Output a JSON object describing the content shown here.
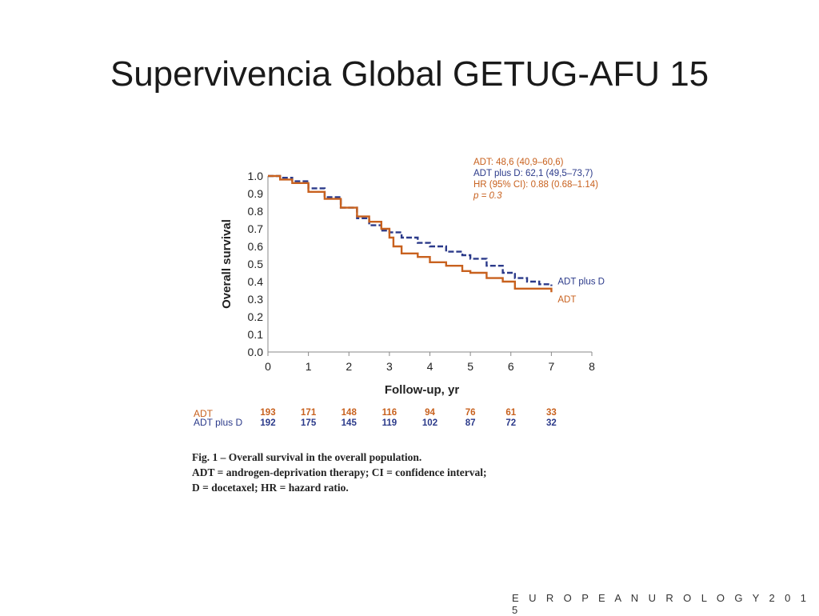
{
  "slide": {
    "title": "Supervivencia Global GETUG-AFU 15",
    "footer": "E U R O P E A N U R O L O G Y  2 0 1 5"
  },
  "caption": {
    "title": "Fig. 1 – Overall survival in the overall population.",
    "lines": [
      "ADT = androgen-deprivation therapy; CI = confidence interval;",
      "D = docetaxel; HR = hazard ratio."
    ]
  },
  "chart_data": {
    "type": "line",
    "xlabel": "Follow-up, yr",
    "ylabel": "Overall survival",
    "xlim": [
      0,
      8
    ],
    "ylim": [
      0,
      1
    ],
    "xticks": [
      "0",
      "1",
      "2",
      "3",
      "4",
      "5",
      "6",
      "7",
      "8"
    ],
    "yticks": [
      "0.0",
      "0.1",
      "0.2",
      "0.3",
      "0.4",
      "0.5",
      "0.6",
      "0.7",
      "0.8",
      "0.9",
      "1.0"
    ],
    "annotations": [
      {
        "text": "ADT: 48,6 (40,9–60,6)",
        "color": "#c8611e",
        "italic": false
      },
      {
        "text": "ADT plus D: 62,1 (49,5–73,7)",
        "color": "#2b3a8a",
        "italic": false
      },
      {
        "text": "HR (95% CI): 0.88 (0.68–1.14)",
        "color": "#c8611e",
        "italic": false
      },
      {
        "text": "p = 0.3",
        "color": "#c8611e",
        "italic": true
      }
    ],
    "series": [
      {
        "name": "ADT plus D",
        "color": "#2b3a8a",
        "dashed": true,
        "x": [
          0,
          0.3,
          0.6,
          1.0,
          1.4,
          1.8,
          2.2,
          2.5,
          2.8,
          3.0,
          3.3,
          3.7,
          4.0,
          4.4,
          4.8,
          5.0,
          5.4,
          5.8,
          6.1,
          6.4,
          6.7,
          7.0
        ],
        "y": [
          1.0,
          0.99,
          0.97,
          0.93,
          0.88,
          0.82,
          0.76,
          0.72,
          0.69,
          0.68,
          0.65,
          0.62,
          0.6,
          0.57,
          0.55,
          0.53,
          0.49,
          0.45,
          0.42,
          0.4,
          0.385,
          0.375
        ]
      },
      {
        "name": "ADT",
        "color": "#c8611e",
        "dashed": false,
        "x": [
          0,
          0.3,
          0.6,
          1.0,
          1.4,
          1.8,
          2.2,
          2.5,
          2.8,
          3.0,
          3.1,
          3.3,
          3.7,
          4.0,
          4.4,
          4.8,
          5.0,
          5.4,
          5.8,
          6.1,
          6.5,
          7.0
        ],
        "y": [
          1.0,
          0.98,
          0.96,
          0.91,
          0.87,
          0.82,
          0.77,
          0.74,
          0.7,
          0.65,
          0.6,
          0.56,
          0.54,
          0.51,
          0.49,
          0.46,
          0.45,
          0.42,
          0.4,
          0.36,
          0.36,
          0.34
        ]
      }
    ],
    "at_risk": [
      {
        "name": "ADT",
        "color": "#c8611e",
        "values": [
          "193",
          "171",
          "148",
          "116",
          "94",
          "76",
          "61",
          "33"
        ]
      },
      {
        "name": "ADT plus D",
        "color": "#2b3a8a",
        "values": [
          "192",
          "175",
          "145",
          "119",
          "102",
          "87",
          "72",
          "32"
        ]
      }
    ]
  }
}
